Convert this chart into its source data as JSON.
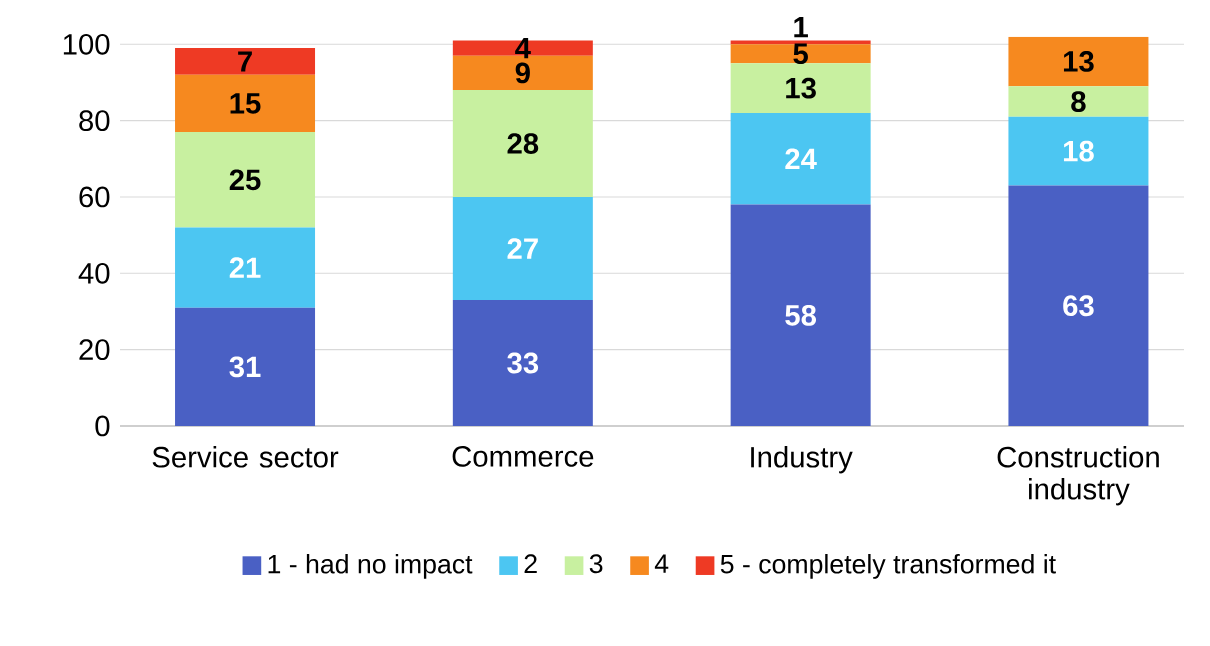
{
  "chart_data": {
    "type": "bar",
    "stacked": true,
    "categories": [
      "Service sector",
      "Commerce",
      "Industry",
      "Construction industry"
    ],
    "series": [
      {
        "name": "1 -  had no impact",
        "color": "#4a60c4",
        "values": [
          31,
          33,
          58,
          63
        ]
      },
      {
        "name": "2",
        "color": "#4cc6f2",
        "values": [
          21,
          27,
          24,
          18
        ]
      },
      {
        "name": "3",
        "color": "#c8f0a0",
        "values": [
          25,
          28,
          13,
          8
        ]
      },
      {
        "name": "4",
        "color": "#f6891f",
        "values": [
          15,
          9,
          5,
          13
        ]
      },
      {
        "name": "5 - completely transformed it",
        "color": "#ee3a24",
        "values": [
          7,
          4,
          1,
          null
        ]
      }
    ],
    "ylim": [
      0,
      102
    ],
    "yticks": [
      0,
      20,
      40,
      60,
      80,
      100
    ],
    "grid": "y",
    "legend": "bottom",
    "data_labels": true
  }
}
